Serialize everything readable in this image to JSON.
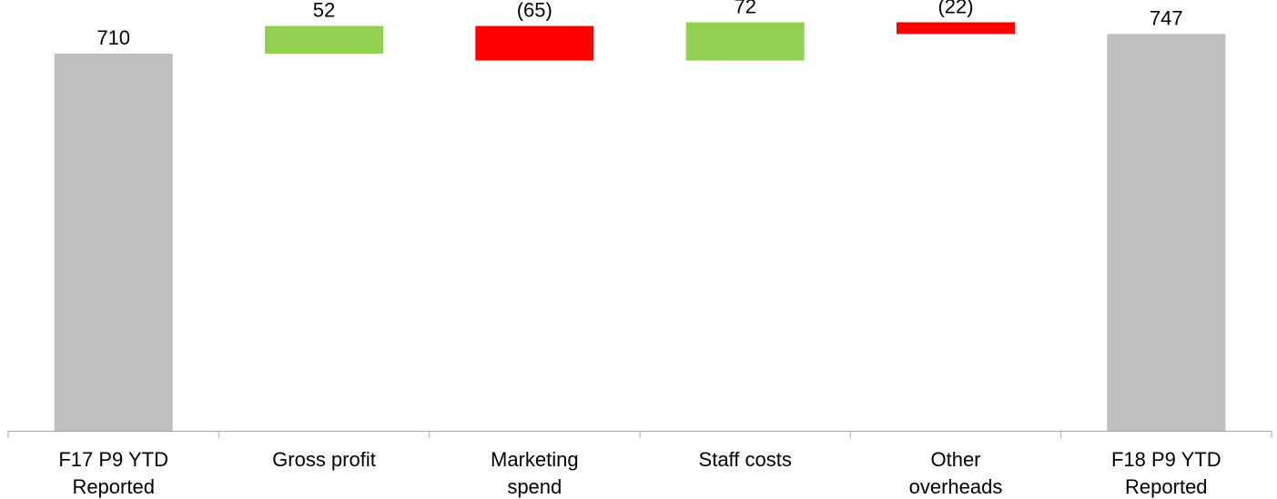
{
  "chart_data": {
    "type": "bar",
    "subtype": "waterfall",
    "title": "",
    "xlabel": "",
    "ylabel": "",
    "categories": [
      [
        "F17 P9 YTD",
        "Reported"
      ],
      [
        "Gross profit"
      ],
      [
        "Marketing",
        "spend"
      ],
      [
        "Staff costs"
      ],
      [
        "Other",
        "overheads"
      ],
      [
        "F18 P9 YTD",
        "Reported"
      ]
    ],
    "steps": [
      {
        "kind": "total",
        "value": 710,
        "label": "710"
      },
      {
        "kind": "delta",
        "value": 52,
        "label": "52"
      },
      {
        "kind": "delta",
        "value": -65,
        "label": "(65)"
      },
      {
        "kind": "delta",
        "value": 72,
        "label": "72"
      },
      {
        "kind": "delta",
        "value": -22,
        "label": "(22)"
      },
      {
        "kind": "total",
        "value": 747,
        "label": "747"
      }
    ],
    "ylim": [
      0,
      775
    ],
    "grid": false,
    "legend": "none",
    "colors": {
      "total": "#bfbfbf",
      "increase": "#92d050",
      "decrease": "#ff0000",
      "axis": "#a6a6a6"
    }
  }
}
